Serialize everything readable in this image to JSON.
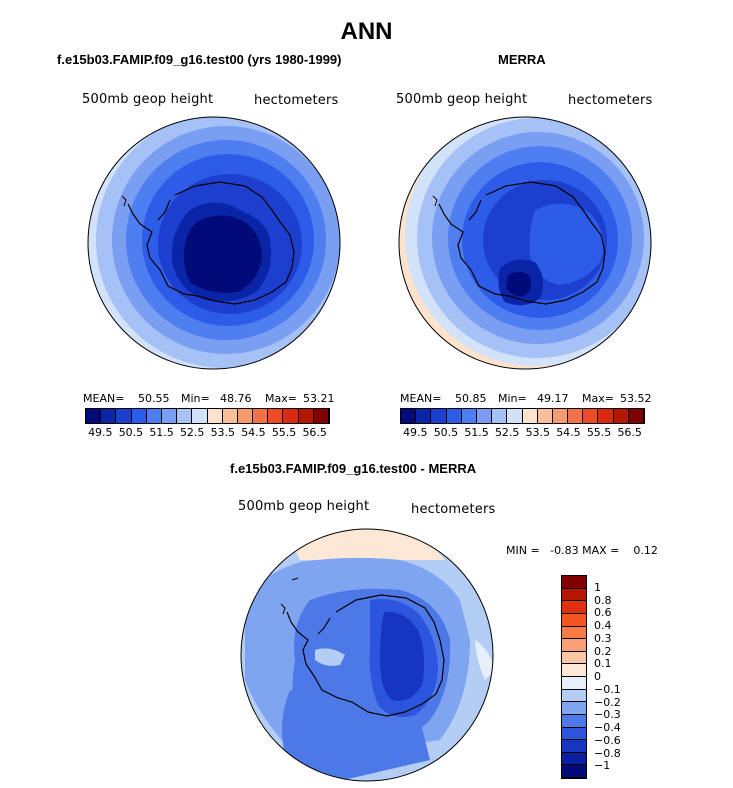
{
  "figure": {
    "title": "ANN",
    "panel1": {
      "title": "f.e15b03.FAMIP.f09_g16.test00 (yrs 1980-1999)",
      "variable": "500mb geop height",
      "units": "hectometers",
      "mean_label": "MEAN=",
      "mean": "50.55",
      "min_label": "Min=",
      "min": "48.76",
      "max_label": "Max=",
      "max": "53.21"
    },
    "panel2": {
      "title": "MERRA",
      "variable": "500mb geop height",
      "units": "hectometers",
      "mean_label": "MEAN=",
      "mean": "50.85",
      "min_label": "Min=",
      "min": "49.17",
      "max_label": "Max=",
      "max": "53.52"
    },
    "panel3": {
      "title": "f.e15b03.FAMIP.f09_g16.test00 - MERRA",
      "variable": "500mb geop height",
      "units": "hectometers",
      "minmax_text": "MIN =   -0.83 MAX =    0.12"
    },
    "colorbar_h": {
      "ticks": [
        "49.5",
        "50.5",
        "51.5",
        "52.5",
        "53.5",
        "54.5",
        "55.5",
        "56.5"
      ],
      "colors": [
        "#000a78",
        "#0a24a8",
        "#1c3fd0",
        "#2d5ce8",
        "#4f7ef0",
        "#7a9ff2",
        "#a6c1f5",
        "#d2e2f8",
        "#fde2cc",
        "#fbbf9c",
        "#f89a70",
        "#f4724a",
        "#ef4a27",
        "#d92a10",
        "#b41600",
        "#800000"
      ]
    },
    "colorbar_v": {
      "ticks": [
        "1",
        "0.8",
        "0.6",
        "0.4",
        "0.3",
        "0.2",
        "0.1",
        "0",
        "−0.1",
        "−0.2",
        "−0.3",
        "−0.4",
        "−0.6",
        "−0.8",
        "−1"
      ],
      "colors": [
        "#800000",
        "#b41600",
        "#e03010",
        "#f55520",
        "#f77b45",
        "#f9a077",
        "#fbc7a5",
        "#fde8d8",
        "#e6effa",
        "#b4cdf5",
        "#7fa5f0",
        "#4d78e8",
        "#2a55dc",
        "#1635c0",
        "#0a1ea0",
        "#000a78"
      ]
    }
  }
}
